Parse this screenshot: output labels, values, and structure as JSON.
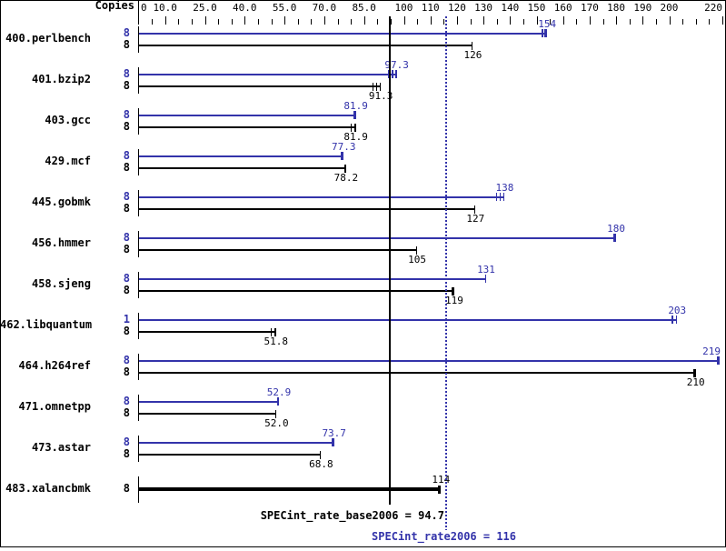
{
  "header": {
    "copies_label": "Copies"
  },
  "colors": {
    "peak_blue": "#3333aa",
    "base_black": "#000000",
    "background": "#ffffff"
  },
  "chart_data": {
    "type": "bar",
    "orientation": "horizontal",
    "x_axis": {
      "min": 0,
      "max": 220,
      "minor_tick_step": 5,
      "labels": [
        {
          "value": 0,
          "text": "0"
        },
        {
          "value": 10,
          "text": "10.0"
        },
        {
          "value": 25,
          "text": "25.0"
        },
        {
          "value": 40,
          "text": "40.0"
        },
        {
          "value": 55,
          "text": "55.0"
        },
        {
          "value": 70,
          "text": "70.0"
        },
        {
          "value": 85,
          "text": "85.0"
        },
        {
          "value": 100,
          "text": "100"
        },
        {
          "value": 110,
          "text": "110"
        },
        {
          "value": 120,
          "text": "120"
        },
        {
          "value": 130,
          "text": "130"
        },
        {
          "value": 140,
          "text": "140"
        },
        {
          "value": 150,
          "text": "150"
        },
        {
          "value": 160,
          "text": "160"
        },
        {
          "value": 170,
          "text": "170"
        },
        {
          "value": 180,
          "text": "180"
        },
        {
          "value": 190,
          "text": "190"
        },
        {
          "value": 200,
          "text": "200"
        },
        {
          "value": 220,
          "text": "220"
        }
      ]
    },
    "series_legend": {
      "peak_color_meaning": "peak",
      "base_color_meaning": "base"
    },
    "benchmarks": [
      {
        "name": "400.perlbench",
        "peak": {
          "copies": "8",
          "value": 154,
          "label": "154",
          "end_ticks": 2,
          "thick_end": true
        },
        "base": {
          "copies": "8",
          "value": 126,
          "label": "126",
          "end_ticks": 1,
          "thick_end": false
        }
      },
      {
        "name": "401.bzip2",
        "peak": {
          "copies": "8",
          "value": 97.3,
          "label": "97.3",
          "end_ticks": 3,
          "thick_end": false
        },
        "base": {
          "copies": "8",
          "value": 91.3,
          "label": "91.3",
          "end_ticks": 3,
          "thick_end": false
        }
      },
      {
        "name": "403.gcc",
        "peak": {
          "copies": "8",
          "value": 81.9,
          "label": "81.9",
          "end_ticks": 1,
          "thick_end": true
        },
        "base": {
          "copies": "8",
          "value": 81.9,
          "label": "81.9",
          "end_ticks": 2,
          "thick_end": false
        }
      },
      {
        "name": "429.mcf",
        "peak": {
          "copies": "8",
          "value": 77.3,
          "label": "77.3",
          "end_ticks": 1,
          "thick_end": true
        },
        "base": {
          "copies": "8",
          "value": 78.2,
          "label": "78.2",
          "end_ticks": 1,
          "thick_end": false
        }
      },
      {
        "name": "445.gobmk",
        "peak": {
          "copies": "8",
          "value": 138,
          "label": "138",
          "end_ticks": 3,
          "thick_end": false
        },
        "base": {
          "copies": "8",
          "value": 127,
          "label": "127",
          "end_ticks": 1,
          "thick_end": false
        }
      },
      {
        "name": "456.hmmer",
        "peak": {
          "copies": "8",
          "value": 180,
          "label": "180",
          "end_ticks": 1,
          "thick_end": true
        },
        "base": {
          "copies": "8",
          "value": 105,
          "label": "105",
          "end_ticks": 1,
          "thick_end": false
        }
      },
      {
        "name": "458.sjeng",
        "peak": {
          "copies": "8",
          "value": 131,
          "label": "131",
          "end_ticks": 1,
          "thick_end": false
        },
        "base": {
          "copies": "8",
          "value": 119,
          "label": "119",
          "end_ticks": 1,
          "thick_end": true
        }
      },
      {
        "name": "462.libquantum",
        "peak": {
          "copies": "1",
          "value": 203,
          "label": "203",
          "end_ticks": 2,
          "thick_end": false
        },
        "base": {
          "copies": "8",
          "value": 51.8,
          "label": "51.8",
          "end_ticks": 2,
          "thick_end": false
        }
      },
      {
        "name": "464.h264ref",
        "peak": {
          "copies": "8",
          "value": 219,
          "label": "219",
          "end_ticks": 1,
          "thick_end": true
        },
        "base": {
          "copies": "8",
          "value": 210,
          "label": "210",
          "end_ticks": 1,
          "thick_end": true
        }
      },
      {
        "name": "471.omnetpp",
        "peak": {
          "copies": "8",
          "value": 52.9,
          "label": "52.9",
          "end_ticks": 1,
          "thick_end": false
        },
        "base": {
          "copies": "8",
          "value": 52.0,
          "label": "52.0",
          "end_ticks": 1,
          "thick_end": false
        }
      },
      {
        "name": "473.astar",
        "peak": {
          "copies": "8",
          "value": 73.7,
          "label": "73.7",
          "end_ticks": 1,
          "thick_end": true
        },
        "base": {
          "copies": "8",
          "value": 68.8,
          "label": "68.8",
          "end_ticks": 1,
          "thick_end": false
        }
      },
      {
        "name": "483.xalancbmk",
        "single": true,
        "base": {
          "copies": "8",
          "value": 114,
          "label": "114",
          "end_ticks": 1,
          "thick_end": true
        }
      }
    ],
    "reference_lines": [
      {
        "id": "base_mean",
        "value": 94.7,
        "style": "solid",
        "color": "#000000",
        "label": "SPECint_rate_base2006 = 94.7"
      },
      {
        "id": "peak_mean",
        "value": 116,
        "style": "dotted",
        "color": "#3333aa",
        "label": "SPECint_rate2006 = 116"
      }
    ]
  }
}
